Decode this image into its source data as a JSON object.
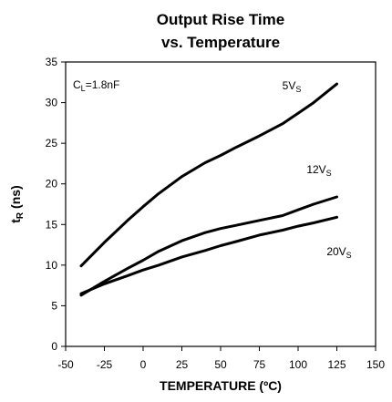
{
  "chart_data": {
    "type": "line",
    "title_line1": "Output Rise Time",
    "title_line2": "vs. Temperature",
    "xlabel": "TEMPERATURE (ºC)",
    "ylabel_main": "t",
    "ylabel_sub": "R",
    "ylabel_unit": " (ns)",
    "xlim": [
      -50,
      150
    ],
    "ylim": [
      0,
      35
    ],
    "xticks": [
      -50,
      -25,
      0,
      25,
      50,
      75,
      100,
      125,
      150
    ],
    "yticks": [
      0,
      5,
      10,
      15,
      20,
      25,
      30,
      35
    ],
    "grid": false,
    "annotation": {
      "main": "C",
      "sub": "L",
      "rest": "=1.8nF"
    },
    "series": [
      {
        "label_main": "5V",
        "label_sub": "S",
        "x": [
          -40,
          -25,
          -10,
          0,
          10,
          25,
          40,
          50,
          60,
          75,
          90,
          100,
          110,
          125
        ],
        "y": [
          9.9,
          12.8,
          15.5,
          17.2,
          18.8,
          20.9,
          22.6,
          23.5,
          24.5,
          25.9,
          27.4,
          28.7,
          30.0,
          32.3
        ]
      },
      {
        "label_main": "12V",
        "label_sub": "S",
        "x": [
          -40,
          -25,
          -10,
          0,
          10,
          25,
          40,
          50,
          60,
          75,
          90,
          100,
          110,
          125
        ],
        "y": [
          6.3,
          8.0,
          9.6,
          10.6,
          11.7,
          13.0,
          14.0,
          14.5,
          14.9,
          15.5,
          16.1,
          16.8,
          17.5,
          18.4
        ]
      },
      {
        "label_main": "20V",
        "label_sub": "S",
        "x": [
          -40,
          -25,
          -10,
          0,
          10,
          25,
          40,
          50,
          60,
          75,
          90,
          100,
          110,
          125
        ],
        "y": [
          6.5,
          7.7,
          8.7,
          9.4,
          10.0,
          11.0,
          11.8,
          12.4,
          12.9,
          13.7,
          14.3,
          14.8,
          15.2,
          15.9
        ]
      }
    ]
  }
}
